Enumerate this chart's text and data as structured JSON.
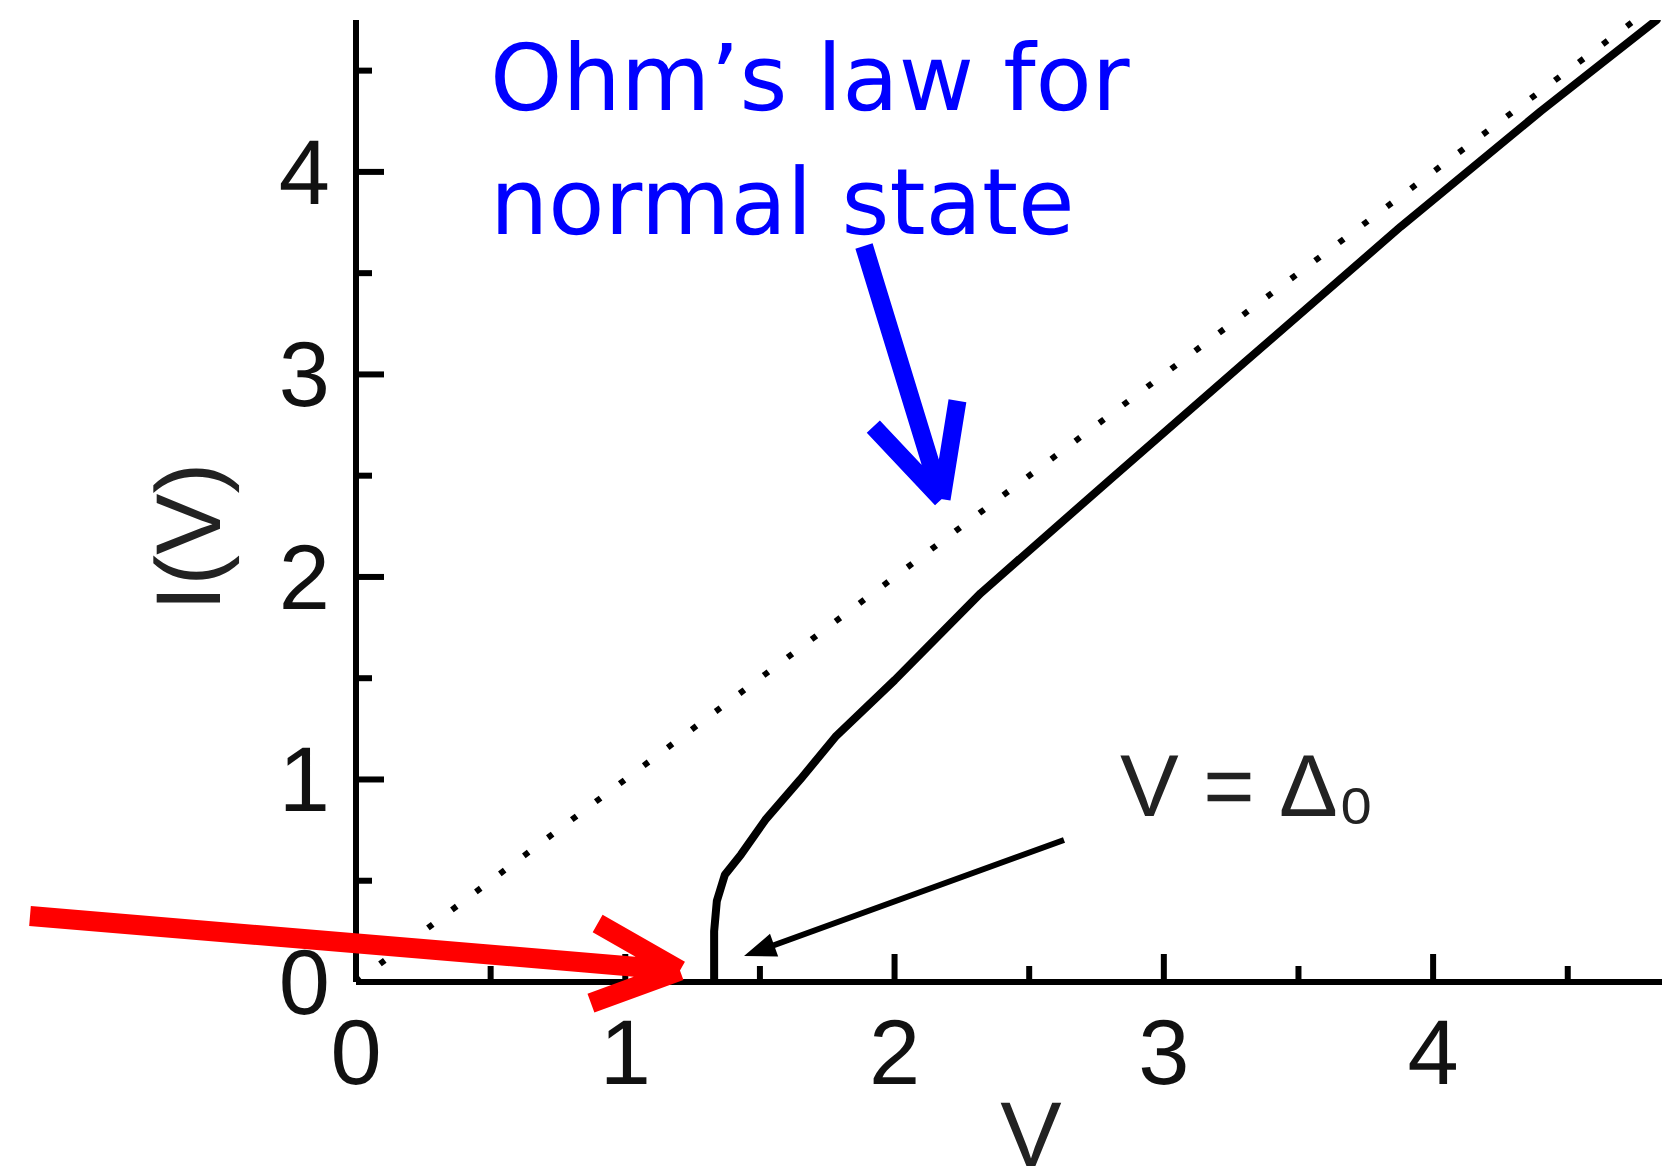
{
  "chart_data": {
    "type": "line",
    "xlabel": "V",
    "ylabel": "I(V)",
    "xlim": [
      0,
      4.85
    ],
    "ylim": [
      0,
      4.75
    ],
    "xticks": [
      0,
      {
        "value": 0.5,
        "label": null
      },
      1,
      {
        "value": 1.5,
        "label": null
      },
      2,
      {
        "value": 2.5,
        "label": null
      },
      3,
      {
        "value": 3.5,
        "label": null
      },
      4,
      {
        "value": 4.5,
        "label": null
      }
    ],
    "yticks": [
      0,
      {
        "value": 0.5,
        "label": null
      },
      1,
      {
        "value": 1.5,
        "label": null
      },
      2,
      {
        "value": 2.5,
        "label": null
      },
      3,
      {
        "value": 3.5,
        "label": null
      },
      4,
      {
        "value": 4.5,
        "label": null
      }
    ],
    "series": [
      {
        "color": "#000000",
        "line_style": "dotted",
        "x": [
          0,
          4.75
        ],
        "values": [
          0,
          4.75
        ]
      },
      {
        "color": "#000000",
        "line_style": "solid",
        "x": [
          1.33,
          1.33,
          1.34,
          1.37,
          1.43,
          1.52,
          1.65,
          1.78,
          2.0,
          2.32,
          2.8,
          3.3,
          3.88,
          4.4,
          4.83
        ],
        "values": [
          0,
          0.25,
          0.4,
          0.53,
          0.63,
          0.8,
          1.0,
          1.21,
          1.49,
          1.92,
          2.48,
          3.06,
          3.73,
          4.3,
          4.75
        ]
      }
    ],
    "annotations": [
      "Ohm’s law for normal state",
      "V = Δ₀"
    ]
  }
}
